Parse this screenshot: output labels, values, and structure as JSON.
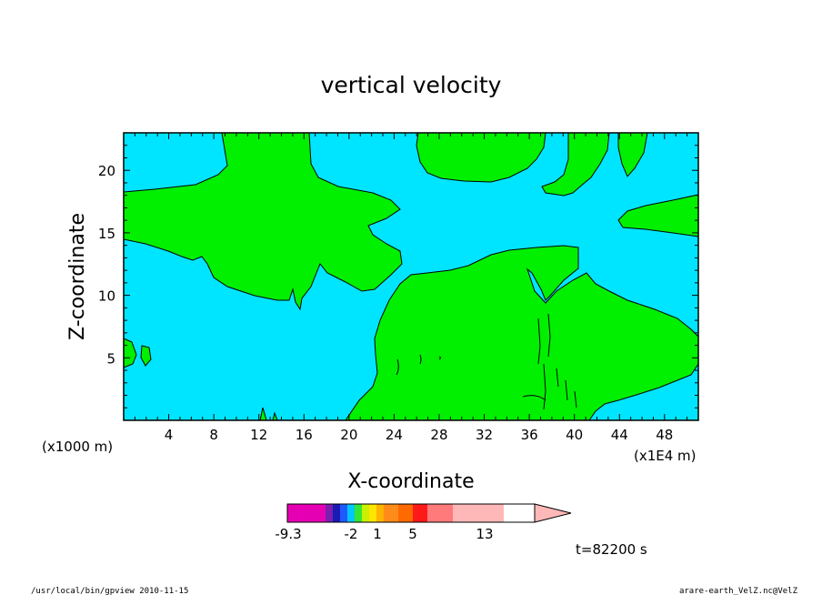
{
  "chart_data": {
    "type": "heatmap",
    "title": "vertical velocity",
    "xlabel": "X-coordinate",
    "ylabel": "Z-coordinate",
    "x_units": "(x1E4 m)",
    "y_units": "(x1000 m)",
    "xlim": [
      0,
      51
    ],
    "ylim": [
      0,
      23
    ],
    "x_ticks": [
      4,
      8,
      12,
      16,
      20,
      24,
      28,
      32,
      36,
      40,
      44,
      48
    ],
    "y_ticks": [
      5,
      10,
      15,
      20
    ],
    "field_colors": {
      "background_field": "#00e5ff",
      "positive_field": "#00f000"
    },
    "colorbar": {
      "colors": [
        "#e600b4",
        "#e600b4",
        "#7a1fb0",
        "#1a1ab4",
        "#1f5aff",
        "#00c8ff",
        "#33e633",
        "#c8f000",
        "#ffe600",
        "#ffb300",
        "#ff8c1a",
        "#ff6a00",
        "#ff1a1a",
        "#ff7a7a",
        "#ff7a7a",
        "#ffb8b8",
        "#ffb8b8",
        "#ffb8b8"
      ],
      "tick_labels": [
        "-9.3",
        "-2",
        "1",
        "5",
        "13"
      ]
    },
    "time_label": "t=82200 s"
  },
  "footer": {
    "left": "/usr/local/bin/gpview  2010-11-15",
    "right": "arare-earth_VelZ.nc@VelZ"
  }
}
